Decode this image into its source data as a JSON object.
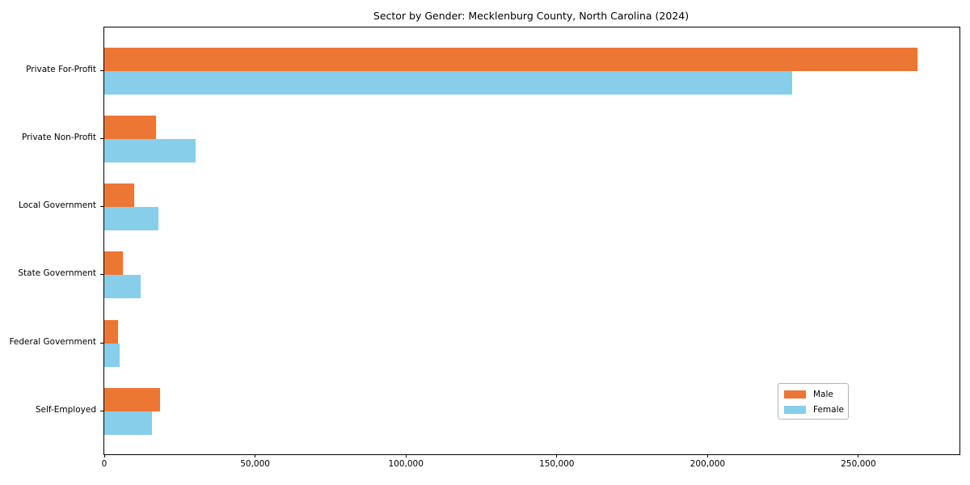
{
  "chart_data": {
    "type": "bar",
    "orientation": "horizontal",
    "title": "Sector by Gender: Mecklenburg County, North Carolina (2024)",
    "categories": [
      "Private For-Profit",
      "Private Non-Profit",
      "Local Government",
      "State Government",
      "Federal Government",
      "Self-Employed"
    ],
    "series": [
      {
        "name": "Male",
        "color": "#ec7633",
        "values": [
          269700,
          17100,
          9900,
          6100,
          4600,
          18600
        ]
      },
      {
        "name": "Female",
        "color": "#87ceeb",
        "values": [
          228100,
          30200,
          17900,
          12000,
          5000,
          15700
        ]
      }
    ],
    "xlabel": "",
    "ylabel": "",
    "xlim": [
      0,
      283500
    ],
    "xtick_values": [
      0,
      50000,
      100000,
      150000,
      200000,
      250000
    ],
    "xtick_labels": [
      "0",
      "50,000",
      "100,000",
      "150,000",
      "200,000",
      "250,000"
    ],
    "grid": false,
    "legend_position": "lower right",
    "background_color": "#ffffff",
    "spine_color": "#000000"
  }
}
